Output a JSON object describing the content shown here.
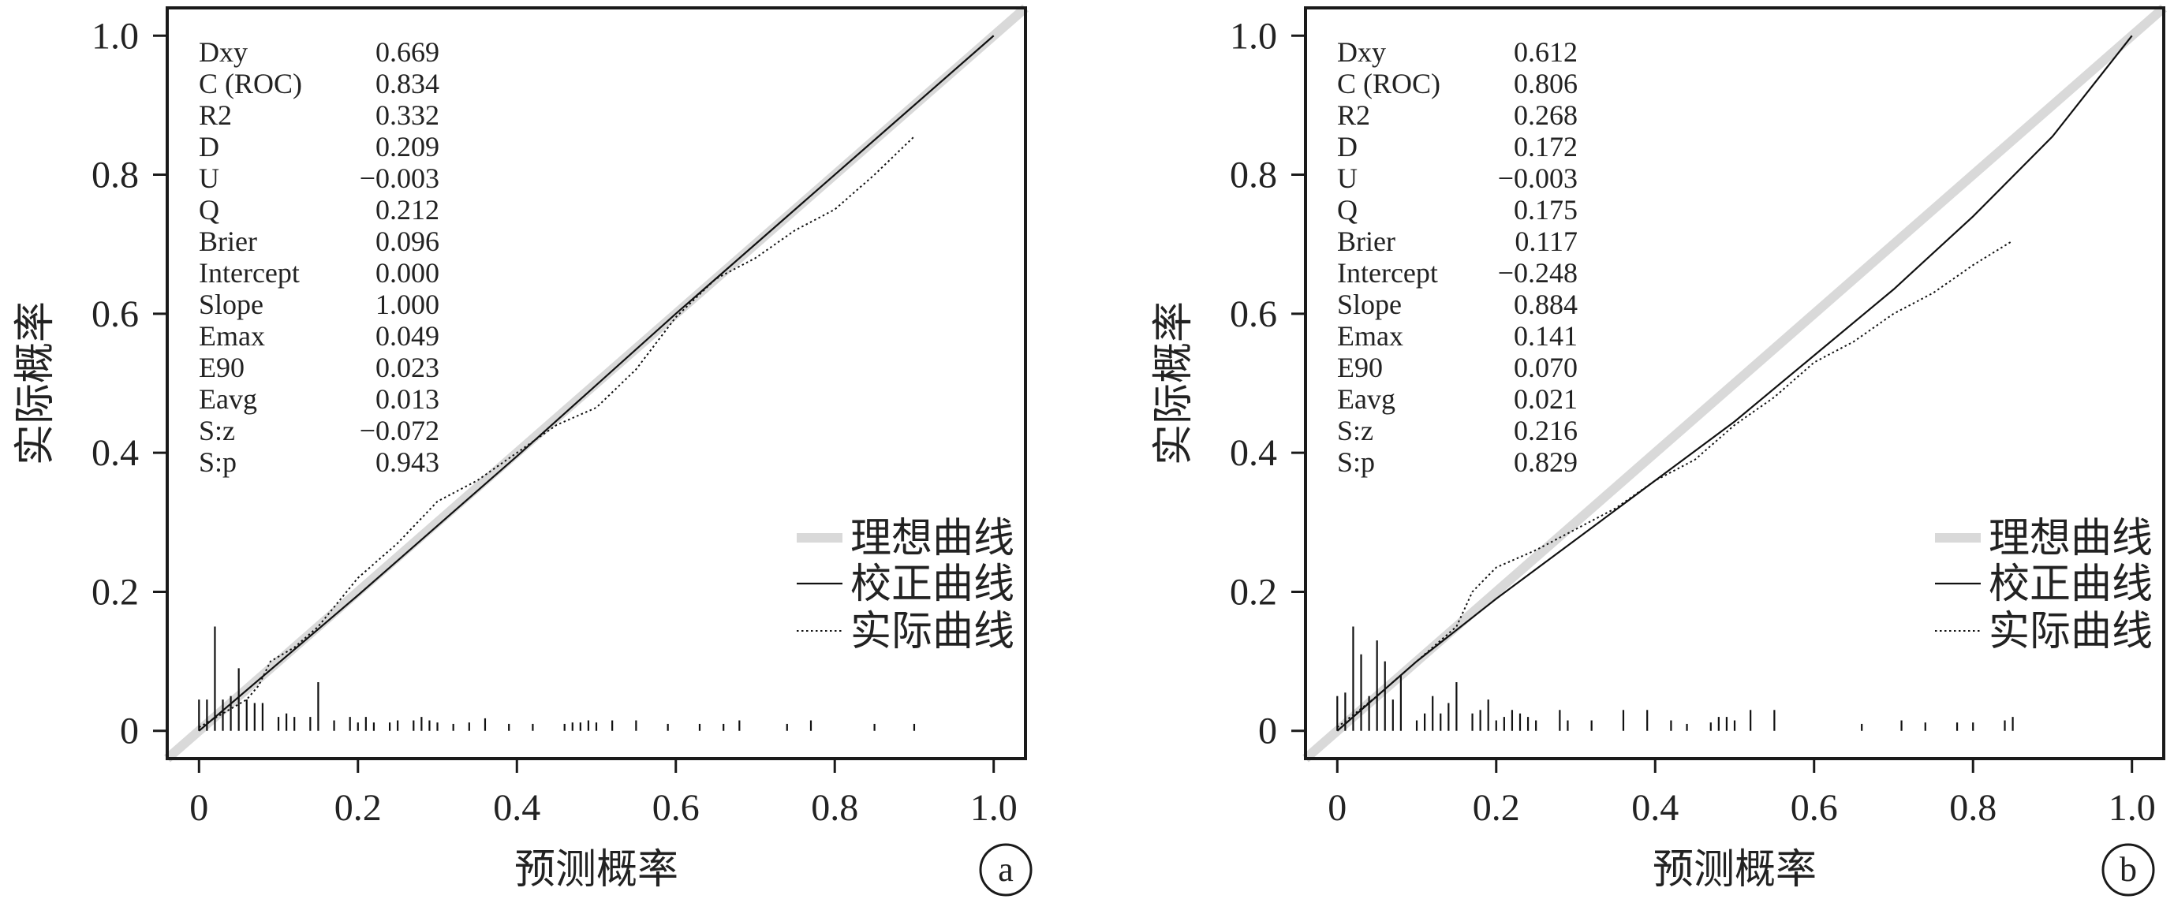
{
  "chart_data": [
    {
      "type": "line",
      "panel_label": "a",
      "xlabel": "预测概率",
      "ylabel": "实际概率",
      "xlim": [
        -0.04,
        1.04
      ],
      "ylim": [
        -0.04,
        1.04
      ],
      "x_ticks": [
        "0",
        "0.2",
        "0.4",
        "0.6",
        "0.8",
        "1.0"
      ],
      "y_ticks": [
        "0",
        "0.2",
        "0.4",
        "0.6",
        "0.8",
        "1.0"
      ],
      "legend": [
        "理想曲线",
        "校正曲线",
        "实际曲线"
      ],
      "legend_position": "lower-right",
      "stats": [
        {
          "name": "Dxy",
          "value": "0.669"
        },
        {
          "name": "C (ROC)",
          "value": "0.834"
        },
        {
          "name": "R2",
          "value": "0.332"
        },
        {
          "name": "D",
          "value": "0.209"
        },
        {
          "name": "U",
          "value": "−0.003"
        },
        {
          "name": "Q",
          "value": "0.212"
        },
        {
          "name": "Brier",
          "value": "0.096"
        },
        {
          "name": "Intercept",
          "value": "0.000"
        },
        {
          "name": "Slope",
          "value": "1.000"
        },
        {
          "name": "Emax",
          "value": "0.049"
        },
        {
          "name": "E90",
          "value": "0.023"
        },
        {
          "name": "Eavg",
          "value": "0.013"
        },
        {
          "name": "S:z",
          "value": "−0.072"
        },
        {
          "name": "S:p",
          "value": "0.943"
        }
      ],
      "series": [
        {
          "name": "理想曲线",
          "style": "thick-gray",
          "x": [
            -0.04,
            1.04
          ],
          "y": [
            -0.04,
            1.04
          ]
        },
        {
          "name": "校正曲线",
          "style": "solid",
          "x": [
            0,
            0.2,
            0.4,
            0.6,
            0.8,
            1.0
          ],
          "y": [
            0.0,
            0.195,
            0.395,
            0.6,
            0.8,
            1.0
          ]
        },
        {
          "name": "实际曲线",
          "style": "dotted",
          "x": [
            0.0,
            0.03,
            0.06,
            0.075,
            0.09,
            0.12,
            0.15,
            0.2,
            0.25,
            0.3,
            0.35,
            0.4,
            0.45,
            0.5,
            0.55,
            0.6,
            0.65,
            0.7,
            0.75,
            0.8,
            0.85,
            0.9
          ],
          "y": [
            0.005,
            0.025,
            0.045,
            0.065,
            0.1,
            0.12,
            0.15,
            0.22,
            0.27,
            0.33,
            0.36,
            0.4,
            0.44,
            0.465,
            0.52,
            0.595,
            0.65,
            0.68,
            0.72,
            0.75,
            0.8,
            0.855
          ]
        }
      ],
      "rug": [
        {
          "x": 0.0,
          "h": 0.045
        },
        {
          "x": 0.01,
          "h": 0.045
        },
        {
          "x": 0.02,
          "h": 0.15
        },
        {
          "x": 0.03,
          "h": 0.045
        },
        {
          "x": 0.04,
          "h": 0.05
        },
        {
          "x": 0.05,
          "h": 0.09
        },
        {
          "x": 0.06,
          "h": 0.045
        },
        {
          "x": 0.07,
          "h": 0.04
        },
        {
          "x": 0.08,
          "h": 0.04
        },
        {
          "x": 0.1,
          "h": 0.02
        },
        {
          "x": 0.11,
          "h": 0.025
        },
        {
          "x": 0.12,
          "h": 0.02
        },
        {
          "x": 0.14,
          "h": 0.02
        },
        {
          "x": 0.15,
          "h": 0.07
        },
        {
          "x": 0.17,
          "h": 0.015
        },
        {
          "x": 0.19,
          "h": 0.02
        },
        {
          "x": 0.2,
          "h": 0.012
        },
        {
          "x": 0.21,
          "h": 0.02
        },
        {
          "x": 0.22,
          "h": 0.012
        },
        {
          "x": 0.24,
          "h": 0.012
        },
        {
          "x": 0.25,
          "h": 0.015
        },
        {
          "x": 0.27,
          "h": 0.015
        },
        {
          "x": 0.28,
          "h": 0.02
        },
        {
          "x": 0.29,
          "h": 0.015
        },
        {
          "x": 0.3,
          "h": 0.012
        },
        {
          "x": 0.32,
          "h": 0.01
        },
        {
          "x": 0.34,
          "h": 0.012
        },
        {
          "x": 0.36,
          "h": 0.018
        },
        {
          "x": 0.39,
          "h": 0.01
        },
        {
          "x": 0.42,
          "h": 0.01
        },
        {
          "x": 0.46,
          "h": 0.01
        },
        {
          "x": 0.47,
          "h": 0.012
        },
        {
          "x": 0.48,
          "h": 0.012
        },
        {
          "x": 0.49,
          "h": 0.015
        },
        {
          "x": 0.5,
          "h": 0.012
        },
        {
          "x": 0.52,
          "h": 0.015
        },
        {
          "x": 0.55,
          "h": 0.015
        },
        {
          "x": 0.59,
          "h": 0.01
        },
        {
          "x": 0.63,
          "h": 0.01
        },
        {
          "x": 0.66,
          "h": 0.01
        },
        {
          "x": 0.68,
          "h": 0.015
        },
        {
          "x": 0.74,
          "h": 0.01
        },
        {
          "x": 0.77,
          "h": 0.015
        },
        {
          "x": 0.85,
          "h": 0.01
        },
        {
          "x": 0.9,
          "h": 0.01
        }
      ]
    },
    {
      "type": "line",
      "panel_label": "b",
      "xlabel": "预测概率",
      "ylabel": "实际概率",
      "xlim": [
        -0.04,
        1.04
      ],
      "ylim": [
        -0.04,
        1.04
      ],
      "x_ticks": [
        "0",
        "0.2",
        "0.4",
        "0.6",
        "0.8",
        "1.0"
      ],
      "y_ticks": [
        "0",
        "0.2",
        "0.4",
        "0.6",
        "0.8",
        "1.0"
      ],
      "legend": [
        "理想曲线",
        "校正曲线",
        "实际曲线"
      ],
      "legend_position": "lower-right",
      "stats": [
        {
          "name": "Dxy",
          "value": "0.612"
        },
        {
          "name": "C (ROC)",
          "value": "0.806"
        },
        {
          "name": "R2",
          "value": "0.268"
        },
        {
          "name": "D",
          "value": "0.172"
        },
        {
          "name": "U",
          "value": "−0.003"
        },
        {
          "name": "Q",
          "value": "0.175"
        },
        {
          "name": "Brier",
          "value": "0.117"
        },
        {
          "name": "Intercept",
          "value": "−0.248"
        },
        {
          "name": "Slope",
          "value": "0.884"
        },
        {
          "name": "Emax",
          "value": "0.141"
        },
        {
          "name": "E90",
          "value": "0.070"
        },
        {
          "name": "Eavg",
          "value": "0.021"
        },
        {
          "name": "S:z",
          "value": "0.216"
        },
        {
          "name": "S:p",
          "value": "0.829"
        }
      ],
      "series": [
        {
          "name": "理想曲线",
          "style": "thick-gray",
          "x": [
            -0.04,
            1.04
          ],
          "y": [
            -0.04,
            1.04
          ]
        },
        {
          "name": "校正曲线",
          "style": "solid",
          "x": [
            0.0,
            0.1,
            0.2,
            0.3,
            0.4,
            0.5,
            0.6,
            0.7,
            0.8,
            0.9,
            1.0
          ],
          "y": [
            0.0,
            0.1,
            0.19,
            0.275,
            0.36,
            0.445,
            0.54,
            0.635,
            0.74,
            0.855,
            1.0
          ]
        },
        {
          "name": "实际曲线",
          "style": "dotted",
          "x": [
            0.0,
            0.05,
            0.1,
            0.15,
            0.17,
            0.2,
            0.25,
            0.3,
            0.35,
            0.4,
            0.45,
            0.5,
            0.55,
            0.6,
            0.65,
            0.7,
            0.75,
            0.8,
            0.85
          ],
          "y": [
            0.005,
            0.05,
            0.1,
            0.15,
            0.2,
            0.235,
            0.26,
            0.29,
            0.32,
            0.36,
            0.39,
            0.44,
            0.48,
            0.53,
            0.56,
            0.6,
            0.63,
            0.67,
            0.705
          ]
        }
      ],
      "rug": [
        {
          "x": 0.0,
          "h": 0.05
        },
        {
          "x": 0.01,
          "h": 0.055
        },
        {
          "x": 0.02,
          "h": 0.15
        },
        {
          "x": 0.03,
          "h": 0.11
        },
        {
          "x": 0.04,
          "h": 0.05
        },
        {
          "x": 0.05,
          "h": 0.13
        },
        {
          "x": 0.06,
          "h": 0.1
        },
        {
          "x": 0.07,
          "h": 0.045
        },
        {
          "x": 0.08,
          "h": 0.08
        },
        {
          "x": 0.1,
          "h": 0.015
        },
        {
          "x": 0.11,
          "h": 0.025
        },
        {
          "x": 0.12,
          "h": 0.05
        },
        {
          "x": 0.13,
          "h": 0.025
        },
        {
          "x": 0.14,
          "h": 0.04
        },
        {
          "x": 0.15,
          "h": 0.07
        },
        {
          "x": 0.17,
          "h": 0.025
        },
        {
          "x": 0.18,
          "h": 0.03
        },
        {
          "x": 0.19,
          "h": 0.045
        },
        {
          "x": 0.2,
          "h": 0.015
        },
        {
          "x": 0.21,
          "h": 0.02
        },
        {
          "x": 0.22,
          "h": 0.03
        },
        {
          "x": 0.23,
          "h": 0.025
        },
        {
          "x": 0.24,
          "h": 0.02
        },
        {
          "x": 0.25,
          "h": 0.015
        },
        {
          "x": 0.28,
          "h": 0.03
        },
        {
          "x": 0.29,
          "h": 0.015
        },
        {
          "x": 0.32,
          "h": 0.015
        },
        {
          "x": 0.36,
          "h": 0.03
        },
        {
          "x": 0.39,
          "h": 0.03
        },
        {
          "x": 0.42,
          "h": 0.015
        },
        {
          "x": 0.44,
          "h": 0.01
        },
        {
          "x": 0.47,
          "h": 0.012
        },
        {
          "x": 0.48,
          "h": 0.02
        },
        {
          "x": 0.49,
          "h": 0.02
        },
        {
          "x": 0.5,
          "h": 0.015
        },
        {
          "x": 0.52,
          "h": 0.03
        },
        {
          "x": 0.55,
          "h": 0.03
        },
        {
          "x": 0.66,
          "h": 0.01
        },
        {
          "x": 0.71,
          "h": 0.015
        },
        {
          "x": 0.74,
          "h": 0.012
        },
        {
          "x": 0.78,
          "h": 0.012
        },
        {
          "x": 0.8,
          "h": 0.012
        },
        {
          "x": 0.84,
          "h": 0.015
        },
        {
          "x": 0.85,
          "h": 0.02
        }
      ]
    }
  ]
}
